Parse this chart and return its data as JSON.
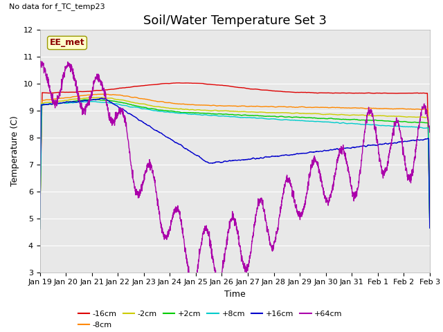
{
  "title": "Soil/Water Temperature Set 3",
  "xlabel": "Time",
  "ylabel": "Temperature (C)",
  "top_left_text": "No data for f_TC_temp23",
  "legend_box_label": "EE_met",
  "ylim": [
    3.0,
    12.0
  ],
  "yticks": [
    3.0,
    4.0,
    5.0,
    6.0,
    7.0,
    8.0,
    9.0,
    10.0,
    11.0,
    12.0
  ],
  "xtick_labels": [
    "Jan 19",
    "Jan 20",
    "Jan 21",
    "Jan 22",
    "Jan 23",
    "Jan 24",
    "Jan 25",
    "Jan 26",
    "Jan 27",
    "Jan 28",
    "Jan 29",
    "Jan 30",
    "Jan 31",
    "Feb 1",
    "Feb 2",
    "Feb 3"
  ],
  "n_points": 2000,
  "series_colors": {
    "-16cm": "#dd0000",
    "-8cm": "#ff8800",
    "-2cm": "#cccc00",
    "+2cm": "#00cc00",
    "+8cm": "#00cccc",
    "+16cm": "#0000cc",
    "+64cm": "#aa00aa"
  },
  "plot_background": "#e8e8e8",
  "fig_background": "#ffffff",
  "grid_color": "#ffffff",
  "title_fontsize": 13,
  "axis_label_fontsize": 9,
  "tick_fontsize": 8,
  "legend_fontsize": 8
}
